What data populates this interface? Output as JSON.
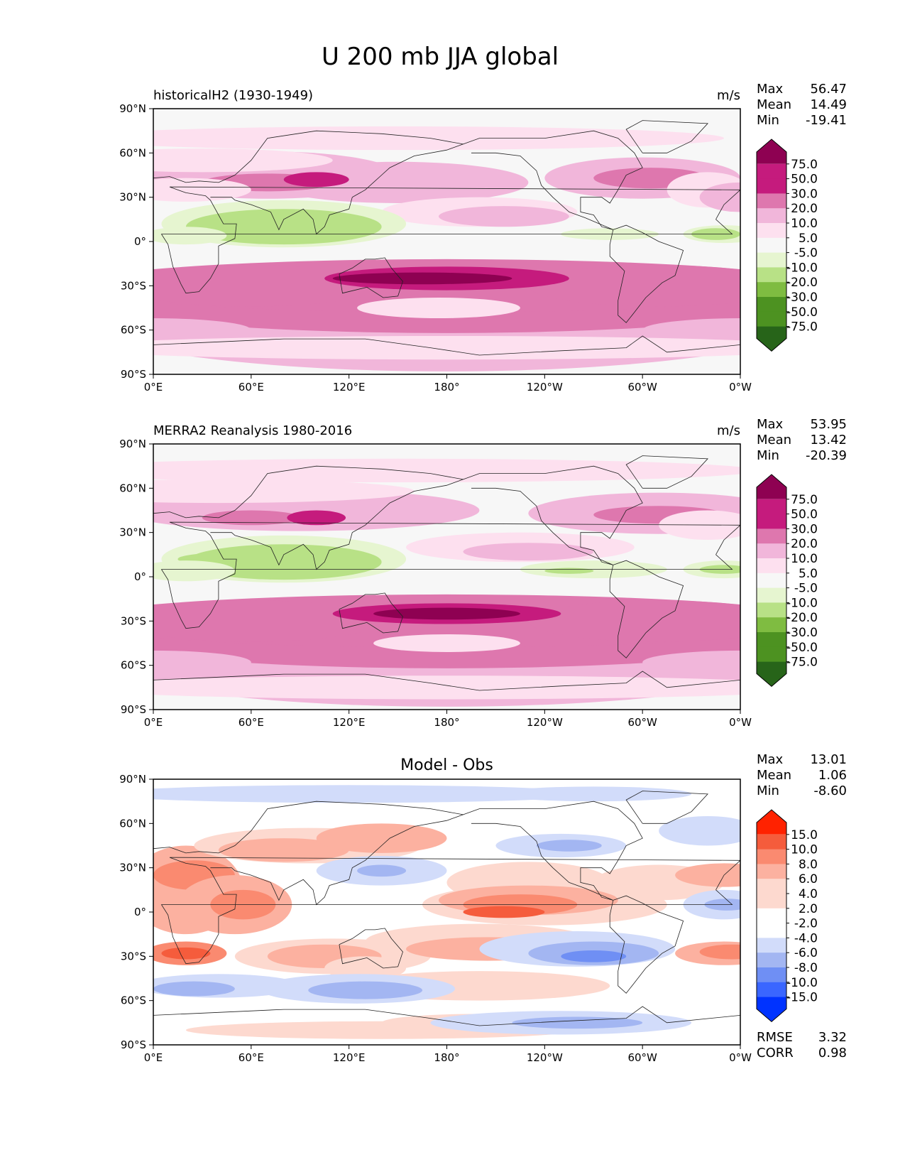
{
  "title": "U 200 mb JJA global",
  "colors": {
    "background": "#f7f7f7",
    "pink_scale": [
      "#276419",
      "#4d9221",
      "#7fbc41",
      "#b8e186",
      "#e6f5d0",
      "#f7f7f7",
      "#fde0ef",
      "#f1b6da",
      "#de77ae",
      "#c51b7d",
      "#8e0152"
    ],
    "diff_scale": [
      "#0033ff",
      "#3a66ff",
      "#6f8ff4",
      "#a3b6f2",
      "#d2dcfa",
      "#ffffff",
      "#fdd9cf",
      "#fcb1a0",
      "#fa8a70",
      "#f55c3c",
      "#ff2200"
    ]
  },
  "chart_data": [
    {
      "type": "heatmap",
      "panel_title": "historicalH2 (1930-1949)",
      "units": "m/s",
      "stats": {
        "max_label": "Max",
        "max": "56.47",
        "mean_label": "Mean",
        "mean": "14.49",
        "min_label": "Min",
        "min": "-19.41"
      },
      "x_ticks": [
        "0°E",
        "60°E",
        "120°E",
        "180°",
        "120°W",
        "60°W",
        "0°W"
      ],
      "y_ticks": [
        "90°N",
        "60°N",
        "30°N",
        "0°",
        "30°S",
        "60°S",
        "90°S"
      ],
      "colorbar_labels": [
        "75.0",
        "50.0",
        "30.0",
        "20.0",
        "10.0",
        "5.0",
        "-5.0",
        "-10.0",
        "-20.0",
        "-30.0",
        "-50.0",
        "-75.0"
      ],
      "xlim": [
        0,
        360
      ],
      "ylim": [
        -90,
        90
      ]
    },
    {
      "type": "heatmap",
      "panel_title": "MERRA2 Reanalysis 1980-2016",
      "units": "m/s",
      "stats": {
        "max_label": "Max",
        "max": "53.95",
        "mean_label": "Mean",
        "mean": "13.42",
        "min_label": "Min",
        "min": "-20.39"
      },
      "x_ticks": [
        "0°E",
        "60°E",
        "120°E",
        "180°",
        "120°W",
        "60°W",
        "0°W"
      ],
      "y_ticks": [
        "90°N",
        "60°N",
        "30°N",
        "0°",
        "30°S",
        "60°S",
        "90°S"
      ],
      "colorbar_labels": [
        "75.0",
        "50.0",
        "30.0",
        "20.0",
        "10.0",
        "5.0",
        "-5.0",
        "-10.0",
        "-20.0",
        "-30.0",
        "-50.0",
        "-75.0"
      ],
      "xlim": [
        0,
        360
      ],
      "ylim": [
        -90,
        90
      ]
    },
    {
      "type": "heatmap",
      "panel_title": "Model - Obs",
      "units": "",
      "stats": {
        "max_label": "Max",
        "max": "13.01",
        "mean_label": "Mean",
        "mean": "1.06",
        "min_label": "Min",
        "min": "-8.60"
      },
      "x_ticks": [
        "0°E",
        "60°E",
        "120°E",
        "180°",
        "120°W",
        "60°W",
        "0°W"
      ],
      "y_ticks": [
        "90°N",
        "60°N",
        "30°N",
        "0°",
        "30°S",
        "60°S",
        "90°S"
      ],
      "colorbar_labels": [
        "15.0",
        "10.0",
        "8.0",
        "6.0",
        "4.0",
        "2.0",
        "-2.0",
        "-4.0",
        "-6.0",
        "-8.0",
        "-10.0",
        "-15.0"
      ],
      "extra_stats": {
        "rmse_label": "RMSE",
        "rmse": "3.32",
        "corr_label": "CORR",
        "corr": "0.98"
      },
      "xlim": [
        0,
        360
      ],
      "ylim": [
        -90,
        90
      ]
    }
  ]
}
